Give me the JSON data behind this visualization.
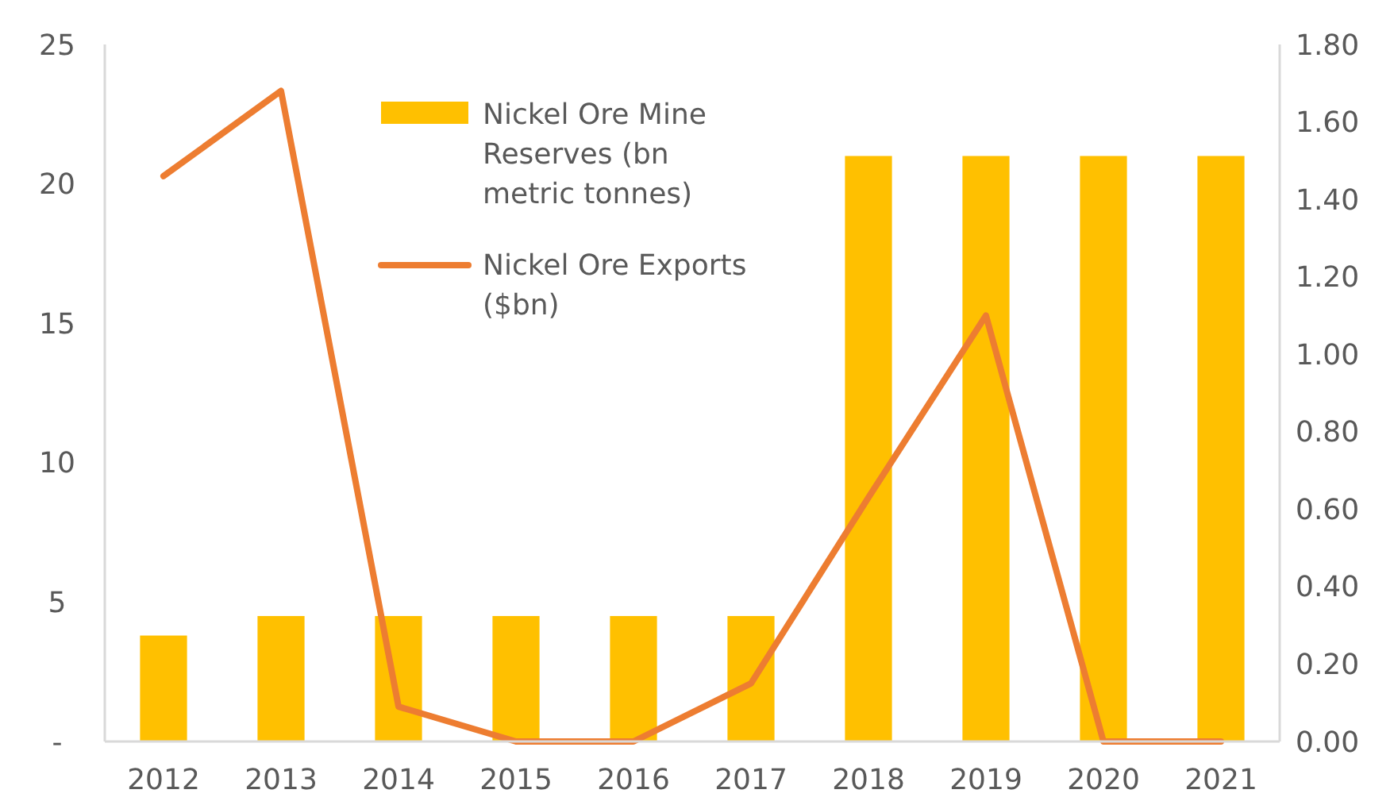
{
  "chart_data": {
    "type": "bar",
    "categories": [
      "2012",
      "2013",
      "2014",
      "2015",
      "2016",
      "2017",
      "2018",
      "2019",
      "2020",
      "2021"
    ],
    "series": [
      {
        "name": "Nickel Ore Mine Reserves (bn metric tonnes)",
        "color": "#ffc000",
        "values": [
          3.8,
          4.5,
          4.5,
          4.5,
          4.5,
          4.5,
          21,
          21,
          21,
          21
        ]
      },
      {
        "name": "Nickel Ore Exports ($bn)",
        "color": "#ed7d31",
        "type": "line",
        "axis": "y2",
        "values": [
          1.46,
          1.68,
          0.09,
          0,
          0,
          0.15,
          0.63,
          1.1,
          0,
          0
        ]
      }
    ],
    "ylim": [
      0,
      25
    ],
    "yticks": [
      {
        "value": 0,
        "label": "-"
      },
      5,
      10,
      15,
      20,
      25
    ],
    "y2lim": [
      0,
      1.8
    ],
    "y2ticks": [
      {
        "value": 0,
        "label": "0.00"
      },
      {
        "value": 0.2,
        "label": "0.20"
      },
      {
        "value": 0.4,
        "label": "0.40"
      },
      {
        "value": 0.6,
        "label": "0.60"
      },
      {
        "value": 0.8,
        "label": "0.80"
      },
      {
        "value": 1,
        "label": "1.00"
      },
      {
        "value": 1.2,
        "label": "1.20"
      },
      {
        "value": 1.4,
        "label": "1.40"
      },
      {
        "value": 1.6,
        "label": "1.60"
      },
      {
        "value": 1.8,
        "label": "1.80"
      }
    ],
    "grid": false,
    "legend": "top",
    "marker": "none",
    "line_style": "solid"
  }
}
